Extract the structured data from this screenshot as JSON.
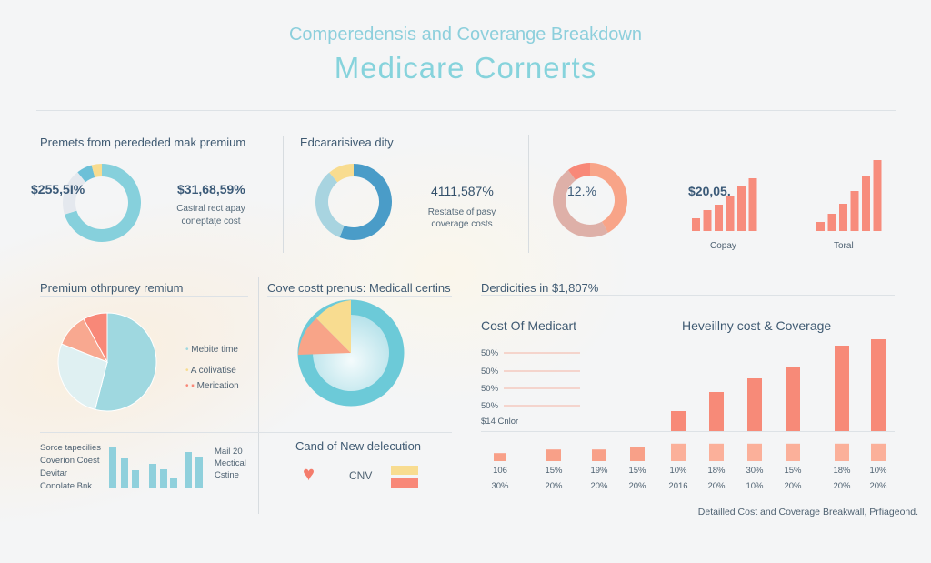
{
  "header": {
    "subtitle": "Comperedensis and Coverange Breakdown",
    "title": "Medicare Cornerts"
  },
  "panel1": {
    "heading": "Premets from perededed mak premium",
    "center_value": "$255,5I%",
    "value": "$31,68,59%",
    "caption_lines": [
      "Castral rect apay",
      "coneptaţe cost"
    ]
  },
  "panel2": {
    "heading": "Edcararisivea dity",
    "value": "4111,587%",
    "caption_lines": [
      "Restatse of pasy",
      "coverage costs"
    ]
  },
  "panel3": {
    "center_value": "12.%",
    "copay_value": "$20,05.",
    "copay_label": "Copay",
    "total_label": "Toral"
  },
  "panel4": {
    "heading": "Premium othrpurey remium",
    "legend": [
      "Mebite time",
      "A colivatise",
      "Merication"
    ]
  },
  "panel5": {
    "heading": "Cove costt prenus: Medicall certins"
  },
  "panel6": {
    "labels": [
      "Sorce tapecilies",
      "Coverion Coest",
      "Devitar",
      "Conolate Bnk"
    ],
    "side_labels": [
      "Mail 20",
      "Mectical",
      "Cstine"
    ]
  },
  "panel7": {
    "heading": "Cand of New delecution",
    "label": "CNV"
  },
  "panel8": {
    "heading": "Derdicities in $1,807%",
    "left_title": "Cost Of Medicart",
    "right_title": "Heveillny cost & Coverage",
    "line_labels": [
      "50%",
      "50%",
      "50%",
      "50%"
    ],
    "bottom_label": "$14 Cnlor",
    "row1": [
      "106",
      "15%",
      "19%",
      "15%",
      "10%",
      "18%",
      "30%",
      "15%",
      "18%",
      "10%"
    ],
    "row2": [
      "30%",
      "20%",
      "20%",
      "20%",
      "2016",
      "20%",
      "10%",
      "20%",
      "20%",
      "20%"
    ]
  },
  "footer": "Detailled Cost and Coverage Breakwall, Prfiageond.",
  "colors": {
    "cyan": "#86d0dc",
    "blue": "#4a9cc8",
    "yellow": "#f8dc90",
    "salmon": "#f8a488",
    "red": "#f88878",
    "gray": "#e4e8ee"
  },
  "chart_data": [
    {
      "type": "pie",
      "donut": true,
      "values": [
        66,
        18,
        6,
        4
      ],
      "colors": [
        "#86d0dc",
        "#e4e8ee",
        "#6cc0d8",
        "#f8dc90"
      ]
    },
    {
      "type": "pie",
      "donut": true,
      "values": [
        56,
        33,
        11
      ],
      "colors": [
        "#4a9cc8",
        "#a8d4e0",
        "#f8dc90"
      ]
    },
    {
      "type": "pie",
      "donut": true,
      "values": [
        42,
        48,
        10
      ],
      "colors": [
        "#f8a488",
        "#deb0a8",
        "#f88878"
      ]
    },
    {
      "type": "bar",
      "label": "Copay",
      "values": [
        14,
        23,
        29,
        38,
        49,
        58
      ]
    },
    {
      "type": "bar",
      "label": "Toral",
      "values": [
        10,
        19,
        30,
        44,
        60,
        78
      ]
    },
    {
      "type": "pie",
      "values": [
        54,
        27,
        11,
        8
      ],
      "colors": [
        "#9fd8e0",
        "#dff0f2",
        "#f8a890",
        "#f88878"
      ]
    },
    {
      "type": "bar",
      "values": [
        46,
        33,
        20,
        27,
        21,
        12,
        40,
        34
      ]
    },
    {
      "type": "bar",
      "values": [
        22,
        43,
        58,
        71,
        94,
        101
      ]
    },
    {
      "type": "bar",
      "values": [
        11,
        16,
        16,
        20,
        24,
        24,
        24,
        24,
        24,
        24
      ]
    }
  ]
}
